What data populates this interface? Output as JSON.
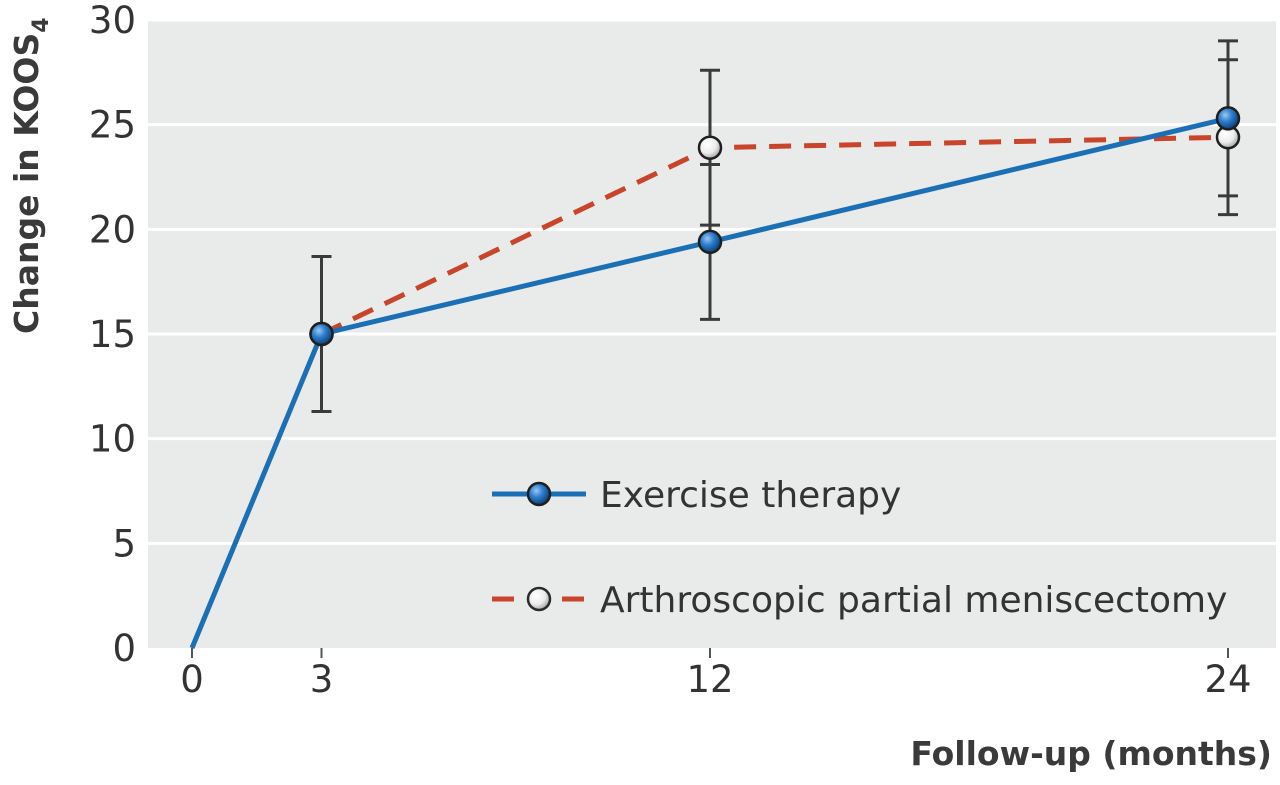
{
  "chart_data": {
    "type": "line",
    "title": "",
    "xlabel": "Follow-up (months)",
    "ylabel": {
      "main": "Change in KOOS",
      "subscript": "4"
    },
    "x_ticks": [
      0,
      3,
      12,
      24
    ],
    "y_ticks": [
      0,
      5,
      10,
      15,
      20,
      25,
      30
    ],
    "xlim": [
      -1,
      25
    ],
    "ylim": [
      0,
      30
    ],
    "grid": "horizontal",
    "legend_placement": "bottom-right",
    "series": [
      {
        "name": "Exercise therapy",
        "color": "#1a6fb5",
        "line_style": "solid",
        "marker": "filled-blue-circle",
        "x": [
          0,
          3,
          12,
          24
        ],
        "y": [
          0,
          15.0,
          19.4,
          25.3
        ],
        "error_low": [
          null,
          11.3,
          15.7,
          21.6
        ],
        "error_high": [
          null,
          18.7,
          23.1,
          29.0
        ]
      },
      {
        "name": "Arthroscopic partial meniscectomy",
        "color": "#c8442a",
        "line_style": "dashed",
        "marker": "open-white-circle",
        "x": [
          3,
          12,
          24
        ],
        "y": [
          15.0,
          23.9,
          24.4
        ],
        "error_low": [
          null,
          20.2,
          20.7
        ],
        "error_high": [
          null,
          27.6,
          28.1
        ]
      }
    ]
  }
}
